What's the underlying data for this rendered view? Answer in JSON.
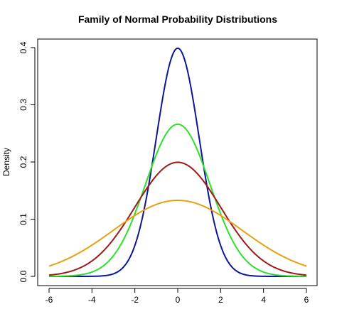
{
  "chart_data": {
    "type": "line",
    "title": "Family of Normal Probability Distributions",
    "xlabel": "",
    "ylabel": "Density",
    "xlim": [
      -6,
      6
    ],
    "ylim": [
      0,
      0.4
    ],
    "x_ticks": [
      -6,
      -4,
      -2,
      0,
      2,
      4,
      6
    ],
    "y_ticks": [
      0.0,
      0.1,
      0.2,
      0.3,
      0.4
    ],
    "x_tick_labels": [
      "-6",
      "-4",
      "-2",
      "0",
      "2",
      "4",
      "6"
    ],
    "y_tick_labels": [
      "0.0",
      "0.1",
      "0.2",
      "0.3",
      "0.4"
    ],
    "grid": false,
    "legend": "none",
    "series": [
      {
        "mean": 0,
        "sd": 1.0,
        "color": "#0d1696",
        "peak": 0.3989
      },
      {
        "mean": 0,
        "sd": 1.5,
        "color": "#2de02d",
        "peak": 0.266
      },
      {
        "mean": 0,
        "sd": 2.0,
        "color": "#a01818",
        "peak": 0.1995
      },
      {
        "mean": 0,
        "sd": 3.0,
        "color": "#e8a010",
        "peak": 0.133
      }
    ]
  }
}
